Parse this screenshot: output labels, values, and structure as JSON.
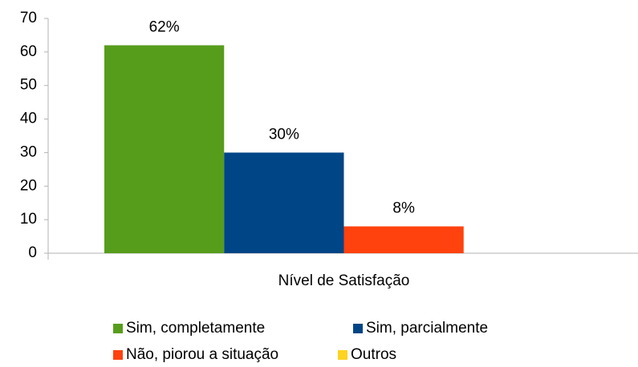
{
  "chart_data": {
    "type": "bar",
    "categories": [
      "Nível de Satisfação"
    ],
    "series": [
      {
        "name": "Sim, completamente",
        "color": "#579d1c",
        "values": [
          62
        ],
        "value_labels": [
          "62%"
        ]
      },
      {
        "name": "Sim, parcialmente",
        "color": "#004586",
        "values": [
          30
        ],
        "value_labels": [
          "30%"
        ]
      },
      {
        "name": "Não, piorou a situação",
        "color": "#ff420e",
        "values": [
          8
        ],
        "value_labels": [
          "8%"
        ]
      },
      {
        "name": "Outros",
        "color": "#ffd320",
        "values": [
          null
        ],
        "value_labels": [
          null
        ]
      }
    ],
    "ylim": [
      0,
      70
    ],
    "yticks": [
      0,
      10,
      20,
      30,
      40,
      50,
      60,
      70
    ],
    "grid": false,
    "legend": "bottom"
  }
}
